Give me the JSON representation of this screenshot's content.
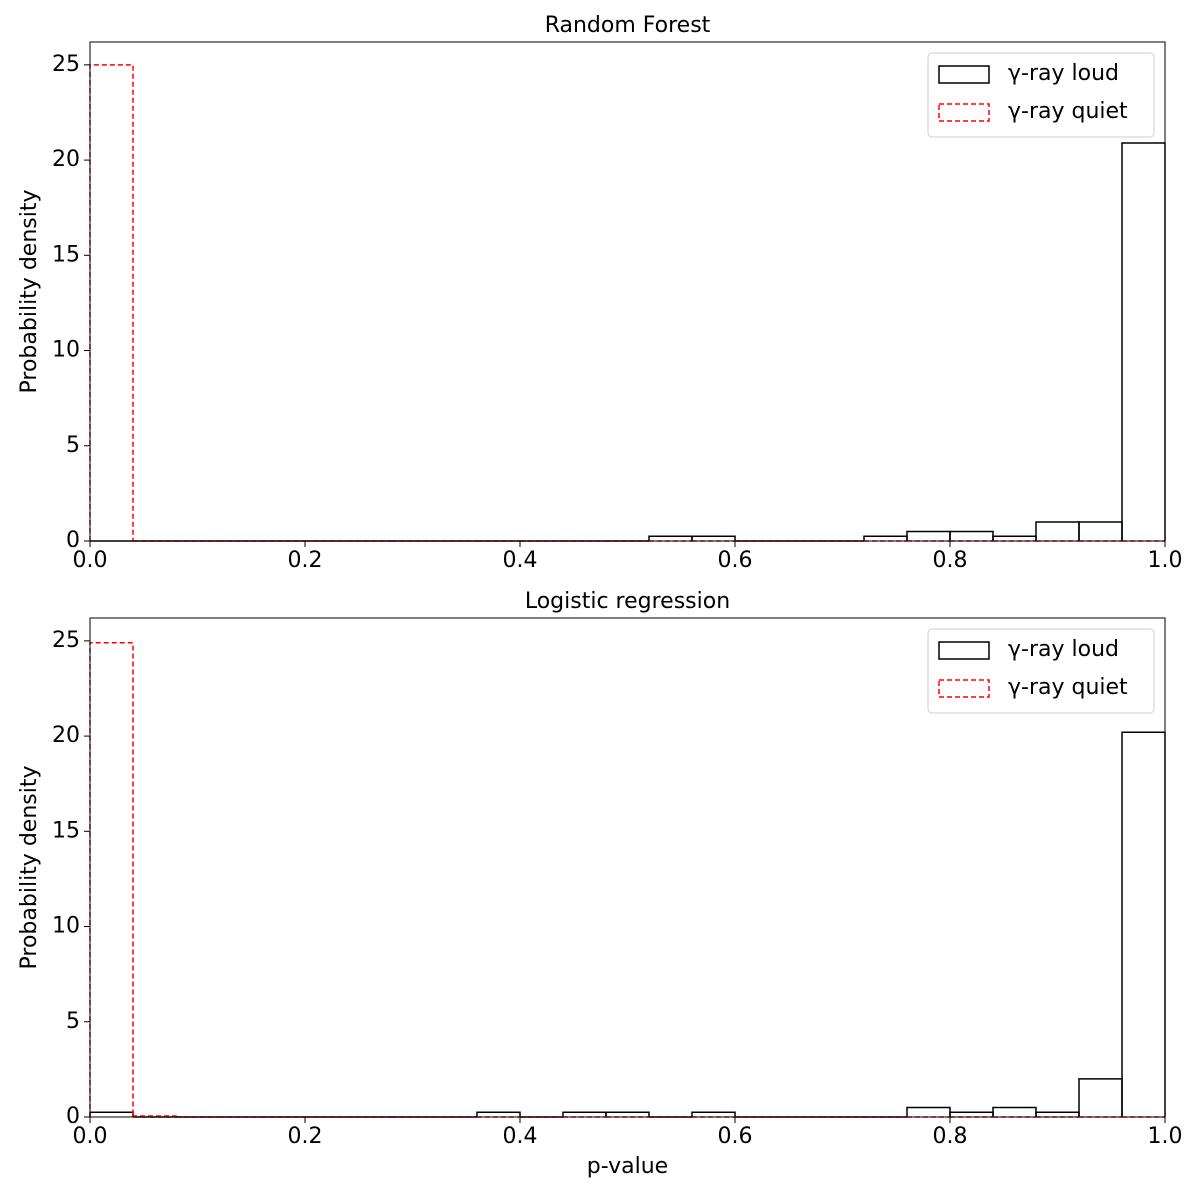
{
  "chart_data": [
    {
      "type": "histogram",
      "title": "Random Forest",
      "ylabel": "Probability  density",
      "bins": [
        0,
        0.04,
        0.08,
        0.12,
        0.16,
        0.2,
        0.24,
        0.28,
        0.32,
        0.36,
        0.4,
        0.44,
        0.48,
        0.52,
        0.56,
        0.6,
        0.64,
        0.68,
        0.72,
        0.76,
        0.8,
        0.84,
        0.88,
        0.92,
        0.96,
        1
      ],
      "series": [
        {
          "name": "γ-ray loud",
          "color": "#000000",
          "dash": false,
          "values": [
            0,
            0,
            0,
            0,
            0,
            0,
            0,
            0,
            0,
            0,
            0,
            0,
            0,
            0.25,
            0.25,
            0,
            0,
            0,
            0.25,
            0.5,
            0.5,
            0.25,
            1,
            1,
            20.9
          ]
        },
        {
          "name": "γ-ray quiet",
          "color": "#ff0000",
          "dash": true,
          "values": [
            25,
            0,
            0,
            0,
            0,
            0,
            0,
            0,
            0,
            0,
            0,
            0,
            0,
            0,
            0,
            0,
            0,
            0,
            0,
            0,
            0,
            0,
            0,
            0,
            0
          ]
        }
      ],
      "xlim": [
        0,
        1
      ],
      "xticks": [
        {
          "value": 0,
          "label": "0.0"
        },
        0.2,
        0.4,
        0.6,
        0.8,
        {
          "value": 1,
          "label": "1.0"
        }
      ],
      "ylim": [
        0,
        26.2
      ],
      "yticks": [
        0,
        5,
        10,
        15,
        20,
        25
      ],
      "legend": "upper right"
    },
    {
      "type": "histogram",
      "title": "Logistic regression",
      "ylabel": "Probability  density",
      "xlabel": "p-value",
      "bins": [
        0,
        0.04,
        0.08,
        0.12,
        0.16,
        0.2,
        0.24,
        0.28,
        0.32,
        0.36,
        0.4,
        0.44,
        0.48,
        0.52,
        0.56,
        0.6,
        0.64,
        0.68,
        0.72,
        0.76,
        0.8,
        0.84,
        0.88,
        0.92,
        0.96,
        1
      ],
      "series": [
        {
          "name": "γ-ray loud",
          "color": "#000000",
          "dash": false,
          "values": [
            0.25,
            0,
            0,
            0,
            0,
            0,
            0,
            0,
            0,
            0.25,
            0,
            0.25,
            0.25,
            0,
            0.25,
            0,
            0,
            0,
            0,
            0.5,
            0.25,
            0.5,
            0.25,
            2,
            20.2
          ]
        },
        {
          "name": "γ-ray quiet",
          "color": "#ff0000",
          "dash": true,
          "values": [
            24.9,
            0.05,
            0,
            0,
            0,
            0,
            0,
            0,
            0,
            0,
            0,
            0,
            0,
            0,
            0,
            0,
            0,
            0,
            0,
            0,
            0,
            0,
            0,
            0,
            0
          ]
        }
      ],
      "xlim": [
        0,
        1
      ],
      "xticks": [
        {
          "value": 0,
          "label": "0.0"
        },
        0.2,
        0.4,
        0.6,
        0.8,
        {
          "value": 1,
          "label": "1.0"
        }
      ],
      "ylim": [
        0,
        26.2
      ],
      "yticks": [
        0,
        5,
        10,
        15,
        20,
        25
      ],
      "legend": "upper right"
    }
  ]
}
